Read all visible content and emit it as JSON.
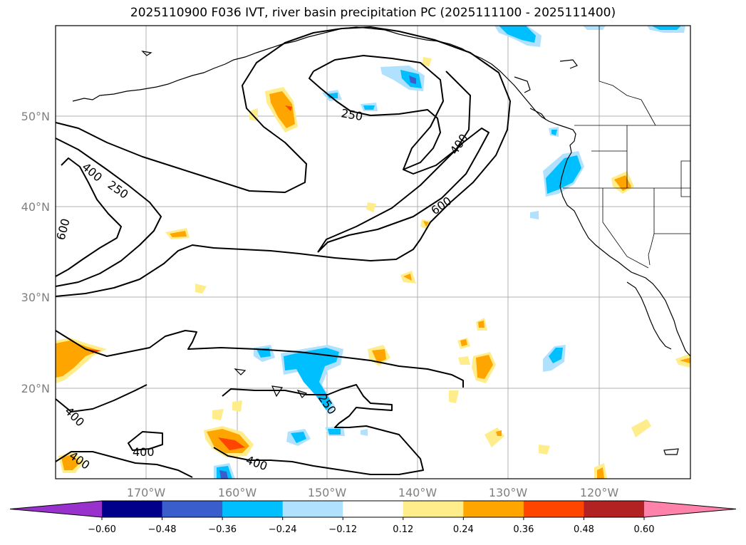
{
  "title": "2025110900 F036 IVT, river basin precipitation PC (2025111100 - 2025111400)",
  "lat_labels": [
    "50°N",
    "40°N",
    "30°N",
    "20°N"
  ],
  "lon_labels": [
    "170°W",
    "160°W",
    "150°W",
    "140°W",
    "130°W",
    "120°W"
  ],
  "contour_labels": {
    "c250a": "250",
    "c400a": "400",
    "c600a": "600",
    "c400b": "400",
    "c250b": "250",
    "c600b": "600",
    "c400c": "400",
    "c400d": "400",
    "c400e": "400",
    "c400f": "400",
    "c250c": "250"
  },
  "colorbar": {
    "ticks": [
      "−0.60",
      "−0.48",
      "−0.36",
      "−0.24",
      "−0.12",
      "0.12",
      "0.24",
      "0.36",
      "0.48",
      "0.60"
    ],
    "colors": [
      "#9932CC",
      "#00008B",
      "#3A5FCD",
      "#00BFFF",
      "#B0E2FF",
      "#FFFFFF",
      "#FFEC8B",
      "#FFA500",
      "#FF4500",
      "#B22222",
      "#FF82AB"
    ]
  }
}
